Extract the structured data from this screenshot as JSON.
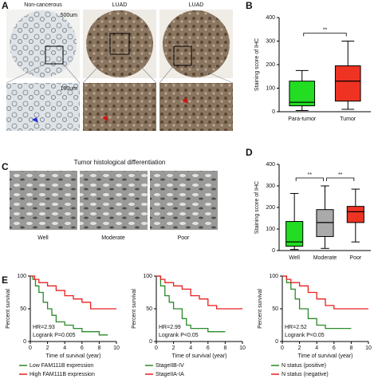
{
  "figure": {
    "panel_labels": [
      "A",
      "B",
      "C",
      "D",
      "E"
    ],
    "a_titles": [
      "Non-cancerous",
      "LUAD",
      "LUAD"
    ],
    "scale_bars": [
      "500um",
      "100um"
    ],
    "c_title": "Tumor histological differentiation",
    "c_labels": [
      "Well",
      "Moderate",
      "Poor"
    ]
  },
  "chart_data": [
    {
      "type": "box",
      "ylabel": "Staining score of IHC",
      "categories": [
        "Para-tumor",
        "Tumor"
      ],
      "colors": [
        "#22dd22",
        "#ee3322"
      ],
      "min": [
        5,
        10
      ],
      "q1": [
        25,
        45
      ],
      "median": [
        40,
        130
      ],
      "q3": [
        130,
        195
      ],
      "max": [
        175,
        300
      ],
      "ylim": [
        0,
        400
      ],
      "yticks": [
        0,
        100,
        200,
        300,
        400
      ],
      "annotations": [
        "**"
      ]
    },
    {
      "type": "box",
      "ylabel": "Staining score of IHC",
      "categories": [
        "Well",
        "Moderate",
        "Poor"
      ],
      "colors": [
        "#22dd22",
        "#aaaaaa",
        "#ee3322"
      ],
      "min": [
        5,
        10,
        40
      ],
      "q1": [
        20,
        65,
        130
      ],
      "median": [
        40,
        130,
        180
      ],
      "q3": [
        135,
        190,
        205
      ],
      "max": [
        265,
        300,
        285
      ],
      "ylim": [
        0,
        400
      ],
      "yticks": [
        0,
        100,
        200,
        300,
        400
      ],
      "annotations": [
        "**",
        "**"
      ]
    },
    {
      "type": "km",
      "ylabel": "Percent survival",
      "xlabel": "Time of survival (year)",
      "annotations": [
        "HR=2.93",
        "Logrank P=0.005"
      ],
      "xlim": [
        0,
        10
      ],
      "xticks": [
        0,
        2,
        4,
        6,
        8,
        10
      ],
      "ylim": [
        0,
        100
      ],
      "yticks": [
        0,
        50,
        100
      ],
      "series": [
        {
          "name": "Low FAM111B expression",
          "color": "#2a8a2a",
          "x": [
            0,
            0.3,
            0.3,
            0.6,
            0.6,
            1,
            1,
            1.5,
            1.5,
            2,
            2,
            2.5,
            2.5,
            3,
            3,
            4,
            4,
            5,
            5,
            6,
            6,
            8,
            8,
            9
          ],
          "values": [
            100,
            100,
            95,
            95,
            85,
            85,
            75,
            75,
            60,
            60,
            50,
            50,
            40,
            40,
            30,
            30,
            25,
            25,
            20,
            20,
            15,
            15,
            10,
            10
          ]
        },
        {
          "name": "High FAM111B expression",
          "color": "#e82020",
          "x": [
            0,
            0.5,
            0.5,
            1,
            1,
            2,
            2,
            3,
            3,
            4,
            4,
            5,
            5,
            6,
            6,
            7,
            7,
            10
          ],
          "values": [
            100,
            100,
            95,
            95,
            90,
            90,
            85,
            85,
            78,
            78,
            70,
            70,
            65,
            65,
            60,
            60,
            50,
            50
          ]
        }
      ]
    },
    {
      "type": "km",
      "ylabel": "Percent survival",
      "xlabel": "Time of survival (year)",
      "annotations": [
        "HR=2.99",
        "Logrank P<0.05"
      ],
      "xlim": [
        0,
        10
      ],
      "xticks": [
        0,
        2,
        4,
        6,
        8,
        10
      ],
      "ylim": [
        0,
        100
      ],
      "yticks": [
        0,
        50,
        100
      ],
      "series": [
        {
          "name": "StageIIB-IV",
          "color": "#2a8a2a",
          "x": [
            0,
            0.5,
            0.5,
            1,
            1,
            1.5,
            1.5,
            2,
            2,
            3,
            3,
            3.5,
            3.5,
            4,
            4,
            6,
            6,
            8
          ],
          "values": [
            100,
            100,
            85,
            85,
            70,
            70,
            60,
            60,
            50,
            50,
            35,
            35,
            25,
            25,
            20,
            20,
            15,
            15
          ]
        },
        {
          "name": "StageIIA-IA",
          "color": "#e82020",
          "x": [
            0,
            0.5,
            0.5,
            1,
            1,
            2,
            2,
            3,
            3,
            4,
            4,
            5,
            5,
            6,
            6,
            7,
            7,
            10
          ],
          "values": [
            100,
            100,
            95,
            95,
            90,
            90,
            85,
            85,
            80,
            80,
            70,
            70,
            65,
            65,
            55,
            55,
            50,
            50
          ]
        }
      ]
    },
    {
      "type": "km",
      "ylabel": "Percent survival",
      "xlabel": "Time of survival (year)",
      "annotations": [
        "HR=2.52",
        "Logrank P<0.05"
      ],
      "xlim": [
        0,
        10
      ],
      "xticks": [
        0,
        2,
        4,
        6,
        8,
        10
      ],
      "ylim": [
        0,
        100
      ],
      "yticks": [
        0,
        50,
        100
      ],
      "series": [
        {
          "name": "N status (positive)",
          "color": "#2a8a2a",
          "x": [
            0,
            0.5,
            0.5,
            1,
            1,
            1.5,
            1.5,
            2,
            2,
            3,
            3,
            4,
            4,
            5,
            5,
            8
          ],
          "values": [
            100,
            100,
            90,
            90,
            80,
            80,
            65,
            65,
            50,
            50,
            35,
            35,
            25,
            25,
            20,
            20
          ]
        },
        {
          "name": "N status (negative)",
          "color": "#e82020",
          "x": [
            0,
            0.5,
            0.5,
            1,
            1,
            2,
            2,
            3,
            3,
            4,
            4,
            5,
            5,
            6,
            6,
            10
          ],
          "values": [
            100,
            100,
            95,
            95,
            90,
            90,
            85,
            85,
            75,
            75,
            65,
            65,
            55,
            55,
            50,
            50
          ]
        }
      ]
    }
  ]
}
